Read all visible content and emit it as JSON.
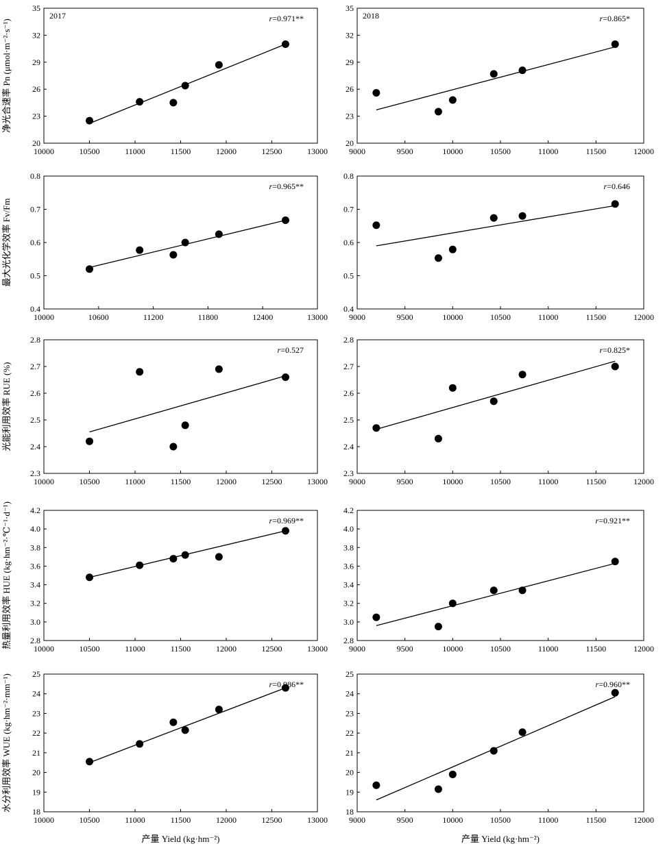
{
  "chart_data": [
    {
      "type": "scatter",
      "year": "2017",
      "annotation": "r=0.971**",
      "ylabel": "净光合速率 Pn (μmol·m⁻²·s⁻¹)",
      "xlim": [
        10000,
        13000
      ],
      "ylim": [
        20,
        35
      ],
      "xticks": [
        10000,
        10500,
        11000,
        11500,
        12000,
        12500,
        13000
      ],
      "yticks": [
        20,
        23,
        26,
        29,
        32,
        35
      ],
      "points": [
        [
          10500,
          22.5
        ],
        [
          11050,
          24.6
        ],
        [
          11420,
          24.5
        ],
        [
          11550,
          26.4
        ],
        [
          11920,
          28.7
        ],
        [
          12650,
          31.0
        ]
      ],
      "fit": [
        [
          10500,
          22.2
        ],
        [
          12650,
          31.0
        ]
      ]
    },
    {
      "type": "scatter",
      "year": "2018",
      "annotation": "r=0.865*",
      "xlim": [
        9000,
        12000
      ],
      "ylim": [
        20,
        35
      ],
      "xticks": [
        9000,
        9500,
        10000,
        10500,
        11000,
        11500,
        12000
      ],
      "yticks": [
        20,
        23,
        26,
        29,
        32,
        35
      ],
      "points": [
        [
          9200,
          25.6
        ],
        [
          9850,
          23.5
        ],
        [
          10000,
          24.8
        ],
        [
          10430,
          27.7
        ],
        [
          10730,
          28.1
        ],
        [
          11700,
          31.0
        ]
      ],
      "fit": [
        [
          9200,
          23.7
        ],
        [
          11700,
          30.7
        ]
      ]
    },
    {
      "type": "scatter",
      "annotation": "r=0.965**",
      "ylabel": "最大光化学效率 Fv/Fm",
      "xlim": [
        10000,
        13000
      ],
      "ylim": [
        0.4,
        0.8
      ],
      "xticks": [
        10000,
        10600,
        11200,
        11800,
        12400,
        13000
      ],
      "yticks": [
        0.4,
        0.5,
        0.6,
        0.7,
        0.8
      ],
      "points": [
        [
          10500,
          0.52
        ],
        [
          11050,
          0.577
        ],
        [
          11420,
          0.563
        ],
        [
          11550,
          0.6
        ],
        [
          11920,
          0.625
        ],
        [
          12650,
          0.667
        ]
      ],
      "fit": [
        [
          10500,
          0.525
        ],
        [
          12650,
          0.667
        ]
      ]
    },
    {
      "type": "scatter",
      "annotation": "r=0.646",
      "xlim": [
        9000,
        12000
      ],
      "ylim": [
        0.4,
        0.8
      ],
      "xticks": [
        9000,
        9500,
        10000,
        10500,
        11000,
        11500,
        12000
      ],
      "yticks": [
        0.4,
        0.5,
        0.6,
        0.7,
        0.8
      ],
      "points": [
        [
          9200,
          0.652
        ],
        [
          9850,
          0.553
        ],
        [
          10000,
          0.579
        ],
        [
          10430,
          0.674
        ],
        [
          10730,
          0.68
        ],
        [
          11700,
          0.716
        ]
      ],
      "fit": [
        [
          9200,
          0.59
        ],
        [
          11700,
          0.711
        ]
      ]
    },
    {
      "type": "scatter",
      "annotation": "r=0.527",
      "ylabel": "光能利用效率 RUE (%)",
      "xlim": [
        10000,
        13000
      ],
      "ylim": [
        2.3,
        2.8
      ],
      "xticks": [
        10000,
        10500,
        11000,
        11500,
        12000,
        12500,
        13000
      ],
      "yticks": [
        2.3,
        2.4,
        2.5,
        2.6,
        2.7,
        2.8
      ],
      "points": [
        [
          10500,
          2.42
        ],
        [
          11050,
          2.68
        ],
        [
          11420,
          2.4
        ],
        [
          11550,
          2.48
        ],
        [
          11920,
          2.69
        ],
        [
          12650,
          2.66
        ]
      ],
      "fit": [
        [
          10500,
          2.455
        ],
        [
          12650,
          2.665
        ]
      ]
    },
    {
      "type": "scatter",
      "annotation": "r=0.825*",
      "xlim": [
        9000,
        12000
      ],
      "ylim": [
        2.3,
        2.8
      ],
      "xticks": [
        9000,
        9500,
        10000,
        10500,
        11000,
        11500,
        12000
      ],
      "yticks": [
        2.3,
        2.4,
        2.5,
        2.6,
        2.7,
        2.8
      ],
      "points": [
        [
          9200,
          2.47
        ],
        [
          9850,
          2.43
        ],
        [
          10000,
          2.62
        ],
        [
          10430,
          2.57
        ],
        [
          10730,
          2.67
        ],
        [
          11700,
          2.7
        ]
      ],
      "fit": [
        [
          9200,
          2.465
        ],
        [
          11700,
          2.72
        ]
      ]
    },
    {
      "type": "scatter",
      "annotation": "r=0.969**",
      "ylabel": "热量利用效率 HUE (kg·hm⁻²·℃⁻¹·d⁻¹)",
      "xlim": [
        10000,
        13000
      ],
      "ylim": [
        2.8,
        4.2
      ],
      "xticks": [
        10000,
        10500,
        11000,
        11500,
        12000,
        12500,
        13000
      ],
      "yticks": [
        2.8,
        3.0,
        3.2,
        3.4,
        3.6,
        3.8,
        4.0,
        4.2
      ],
      "points": [
        [
          10500,
          3.48
        ],
        [
          11050,
          3.61
        ],
        [
          11420,
          3.68
        ],
        [
          11550,
          3.72
        ],
        [
          11920,
          3.7
        ],
        [
          12650,
          3.98
        ]
      ],
      "fit": [
        [
          10500,
          3.48
        ],
        [
          12650,
          3.98
        ]
      ]
    },
    {
      "type": "scatter",
      "annotation": "r=0.921**",
      "xlim": [
        9000,
        12000
      ],
      "ylim": [
        2.8,
        4.2
      ],
      "xticks": [
        9000,
        9500,
        10000,
        10500,
        11000,
        11500,
        12000
      ],
      "yticks": [
        2.8,
        3.0,
        3.2,
        3.4,
        3.6,
        3.8,
        4.0,
        4.2
      ],
      "points": [
        [
          9200,
          3.05
        ],
        [
          9850,
          2.95
        ],
        [
          10000,
          3.2
        ],
        [
          10430,
          3.34
        ],
        [
          10730,
          3.34
        ],
        [
          11700,
          3.65
        ]
      ],
      "fit": [
        [
          9200,
          2.96
        ],
        [
          11700,
          3.63
        ]
      ]
    },
    {
      "type": "scatter",
      "annotation": "r=0.986**",
      "ylabel": "水分利用效率 WUE (kg·hm⁻²·mm⁻¹)",
      "xlabel": "产量 Yield (kg·hm⁻²)",
      "xlim": [
        10000,
        13000
      ],
      "ylim": [
        18,
        25
      ],
      "xticks": [
        10000,
        10500,
        11000,
        11500,
        12000,
        12500,
        13000
      ],
      "yticks": [
        18,
        19,
        20,
        21,
        22,
        23,
        24,
        25
      ],
      "points": [
        [
          10500,
          20.55
        ],
        [
          11050,
          21.45
        ],
        [
          11420,
          22.55
        ],
        [
          11550,
          22.15
        ],
        [
          11920,
          23.2
        ],
        [
          12650,
          24.3
        ]
      ],
      "fit": [
        [
          10500,
          20.5
        ],
        [
          12650,
          24.3
        ]
      ]
    },
    {
      "type": "scatter",
      "annotation": "r=0.960**",
      "xlabel": "产量 Yield (kg·hm⁻²)",
      "xlim": [
        9000,
        12000
      ],
      "ylim": [
        18,
        25
      ],
      "xticks": [
        9000,
        9500,
        10000,
        10500,
        11000,
        11500,
        12000
      ],
      "yticks": [
        18,
        19,
        20,
        21,
        22,
        23,
        24,
        25
      ],
      "points": [
        [
          9200,
          19.35
        ],
        [
          9850,
          19.15
        ],
        [
          10000,
          19.9
        ],
        [
          10430,
          21.1
        ],
        [
          10730,
          22.05
        ],
        [
          11700,
          24.05
        ]
      ],
      "fit": [
        [
          9200,
          18.6
        ],
        [
          11700,
          23.85
        ]
      ]
    }
  ]
}
